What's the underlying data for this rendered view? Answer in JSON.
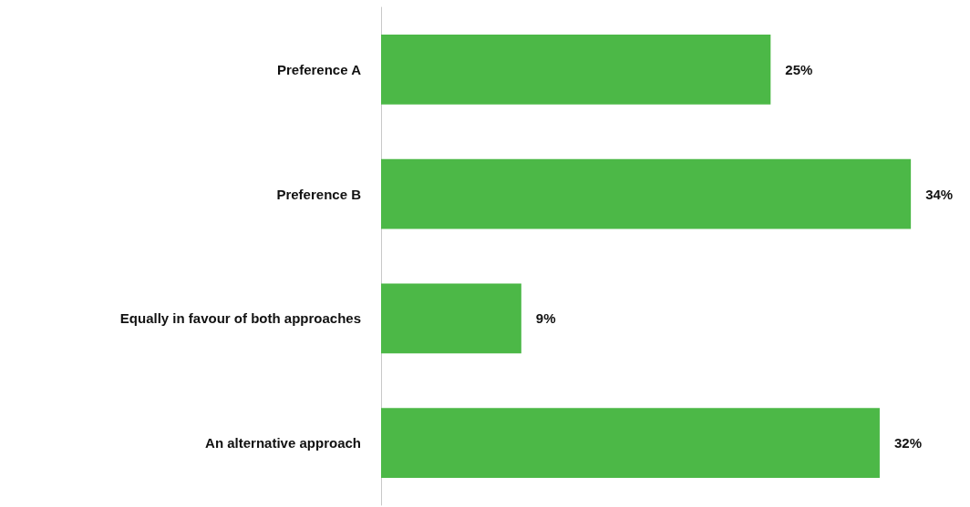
{
  "chart_data": {
    "type": "bar",
    "orientation": "horizontal",
    "categories": [
      "Preference A",
      "Preference B",
      "Equally in favour of both approaches",
      "An alternative approach"
    ],
    "values": [
      25,
      34,
      9,
      32
    ],
    "value_labels": [
      "25%",
      "34%",
      "9%",
      "32%"
    ],
    "color": "#4cb847"
  }
}
